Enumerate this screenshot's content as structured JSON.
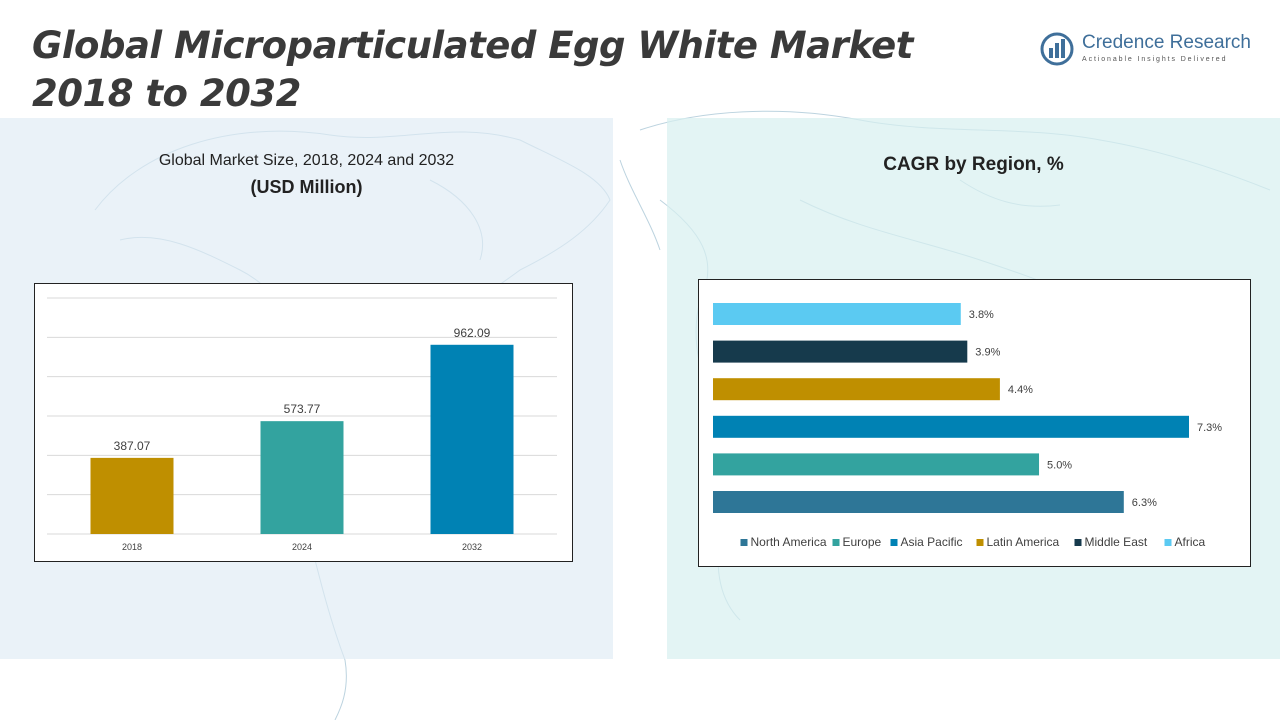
{
  "header": {
    "title_line1": "Global Microparticulated Egg White Market",
    "title_line2": "2018 to 2032"
  },
  "logo": {
    "name": "Credence Research",
    "tagline": "Actionable Insights Delivered"
  },
  "left_panel": {
    "subtitle": "Global Market Size, 2018, 2024 and 2032",
    "unit_label": "(USD Million)"
  },
  "right_panel": {
    "title": "CAGR by Region, %"
  },
  "colors": {
    "panel_left": "#dfebf4",
    "panel_right": "#d7f0f0",
    "bar_2018": "#bf8f00",
    "bar_2024": "#33a39f",
    "bar_2032": "#0082b4",
    "north_america": "#2e7697",
    "europe": "#33a39f",
    "asia_pacific": "#0082b4",
    "latin_america": "#bf8f00",
    "middle_east": "#163a4c",
    "africa": "#5bcaf2"
  },
  "chart_data": [
    {
      "type": "bar",
      "categories": [
        "2018",
        "2024",
        "2032"
      ],
      "values": [
        387.07,
        573.77,
        962.09
      ],
      "value_labels": [
        "387.07",
        "573.77",
        "962.09"
      ],
      "colors": [
        "#bf8f00",
        "#33a39f",
        "#0082b4"
      ],
      "title": "Global Market Size, 2018, 2024 and 2032",
      "ylabel": "",
      "ylim": [
        0,
        1200
      ],
      "grid": true,
      "legend": "none"
    },
    {
      "type": "bar",
      "orientation": "horizontal",
      "categories": [
        "North America",
        "Europe",
        "Asia Pacific",
        "Latin America",
        "Middle East",
        "Africa"
      ],
      "values": [
        6.3,
        5.0,
        7.3,
        4.4,
        3.9,
        3.8
      ],
      "value_labels": [
        "6.3%",
        "5.0%",
        "7.3%",
        "4.4%",
        "3.9%",
        "3.8%"
      ],
      "colors": [
        "#2e7697",
        "#33a39f",
        "#0082b4",
        "#bf8f00",
        "#163a4c",
        "#5bcaf2"
      ],
      "title": "CAGR by Region, %",
      "xlim": [
        0,
        7.3
      ],
      "grid": false,
      "legend": "bottom"
    }
  ]
}
